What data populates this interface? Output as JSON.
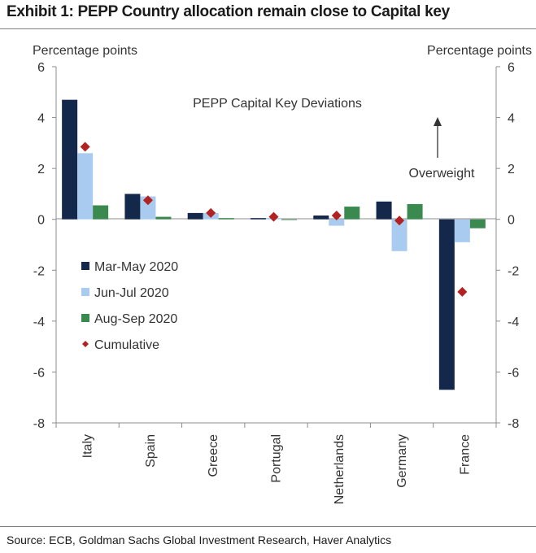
{
  "exhibit_title": "Exhibit 1: PEPP Country allocation remain close to Capital key",
  "source": "Source: ECB, Goldman Sachs Global Investment Research, Haver Analytics",
  "chart_data": {
    "type": "bar",
    "title": "PEPP Capital Key Deviations",
    "ylabel_left": "Percentage points",
    "ylabel_right": "Percentage points",
    "annotation": "Overweight",
    "ylim": [
      -8,
      6
    ],
    "yticks": [
      -8,
      -6,
      -4,
      -2,
      0,
      2,
      4,
      6
    ],
    "grid": false,
    "legend_position": "left-middle",
    "categories": [
      "Italy",
      "Spain",
      "Greece",
      "Portugal",
      "Netherlands",
      "Germany",
      "France"
    ],
    "series": [
      {
        "name": "Mar-May 2020",
        "kind": "bar",
        "color": "#14284b",
        "values": [
          4.7,
          1.0,
          0.25,
          0.05,
          0.15,
          0.7,
          -6.7
        ]
      },
      {
        "name": "Jun-Jul 2020",
        "kind": "bar",
        "color": "#a9cbef",
        "values": [
          2.6,
          0.9,
          0.25,
          0.05,
          -0.25,
          -1.25,
          -0.9
        ]
      },
      {
        "name": "Aug-Sep 2020",
        "kind": "bar",
        "color": "#3a8a4f",
        "values": [
          0.55,
          0.1,
          0.05,
          0.0,
          0.5,
          0.6,
          -0.35
        ]
      },
      {
        "name": "Cumulative",
        "kind": "marker",
        "color": "#b22222",
        "values": [
          2.85,
          0.75,
          0.25,
          0.1,
          0.15,
          -0.05,
          -2.85
        ]
      }
    ]
  }
}
